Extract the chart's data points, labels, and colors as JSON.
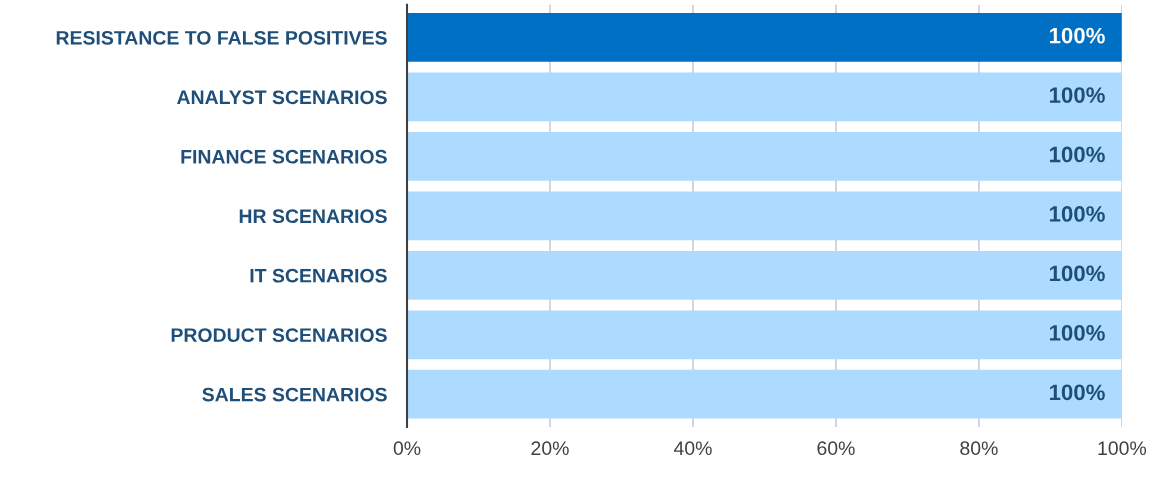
{
  "chart_data": {
    "type": "bar",
    "orientation": "horizontal",
    "categories": [
      "RESISTANCE TO FALSE POSITIVES",
      "ANALYST SCENARIOS",
      "FINANCE SCENARIOS",
      "HR SCENARIOS",
      "IT SCENARIOS",
      "PRODUCT SCENARIOS",
      "SALES SCENARIOS"
    ],
    "values": [
      100,
      100,
      100,
      100,
      100,
      100,
      100
    ],
    "colors": [
      "#0070c4",
      "#addbff",
      "#addbff",
      "#addbff",
      "#addbff",
      "#addbff",
      "#addbff"
    ],
    "value_labels": [
      "100%",
      "100%",
      "100%",
      "100%",
      "100%",
      "100%",
      "100%"
    ],
    "xlim": [
      0,
      100
    ],
    "xticks": [
      {
        "value": 0,
        "label": "0%"
      },
      {
        "value": 20,
        "label": "20%"
      },
      {
        "value": 40,
        "label": "40%"
      },
      {
        "value": 60,
        "label": "60%"
      },
      {
        "value": 80,
        "label": "80%"
      },
      {
        "value": 100,
        "label": "100%"
      }
    ],
    "grid": "x"
  }
}
